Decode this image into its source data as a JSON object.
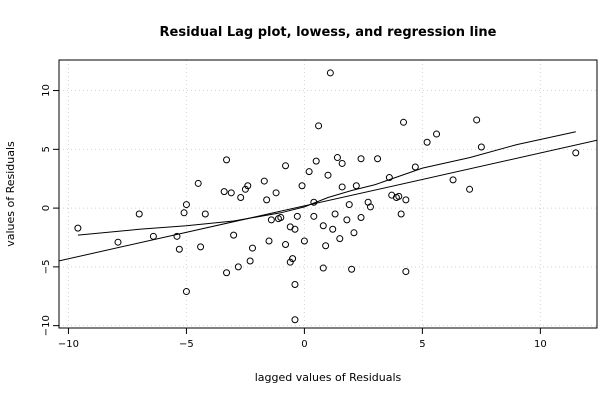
{
  "chart_data": {
    "type": "scatter",
    "title": "Residual Lag plot, lowess, and regression line",
    "xlabel": "lagged values of Residuals",
    "ylabel": "values of Residuals",
    "xlim": [
      -10.4,
      12.4
    ],
    "ylim": [
      -10.2,
      12.6
    ],
    "x_ticks": [
      -10,
      -5,
      0,
      5,
      10
    ],
    "y_ticks": [
      -10,
      -5,
      0,
      5,
      10
    ],
    "grid": true,
    "points": [
      [
        -9.6,
        -1.7
      ],
      [
        -7.9,
        -2.9
      ],
      [
        -7.0,
        -0.5
      ],
      [
        -6.4,
        -2.4
      ],
      [
        -5.4,
        -2.4
      ],
      [
        -5.3,
        -3.5
      ],
      [
        -5.1,
        -0.4
      ],
      [
        -5.0,
        0.3
      ],
      [
        -5.0,
        -7.1
      ],
      [
        -4.5,
        2.1
      ],
      [
        -4.4,
        -3.3
      ],
      [
        -4.2,
        -0.5
      ],
      [
        -3.4,
        1.4
      ],
      [
        -3.3,
        4.1
      ],
      [
        -3.1,
        1.3
      ],
      [
        -3.0,
        -2.3
      ],
      [
        -3.3,
        -5.5
      ],
      [
        -2.8,
        -5.0
      ],
      [
        -2.7,
        0.9
      ],
      [
        -2.5,
        1.6
      ],
      [
        -2.4,
        1.9
      ],
      [
        -2.3,
        -4.5
      ],
      [
        -2.2,
        -3.4
      ],
      [
        -1.7,
        2.3
      ],
      [
        -1.6,
        0.7
      ],
      [
        -1.5,
        -2.8
      ],
      [
        -1.4,
        -1.0
      ],
      [
        -1.2,
        1.3
      ],
      [
        -1.1,
        -0.9
      ],
      [
        -1.0,
        -0.8
      ],
      [
        -0.8,
        3.6
      ],
      [
        -0.8,
        -3.1
      ],
      [
        -0.6,
        -1.6
      ],
      [
        -0.5,
        -4.3
      ],
      [
        -0.6,
        -4.6
      ],
      [
        -0.4,
        -1.8
      ],
      [
        -0.4,
        -6.5
      ],
      [
        -0.3,
        -0.7
      ],
      [
        -0.4,
        -9.5
      ],
      [
        -0.1,
        1.9
      ],
      [
        0.0,
        -2.8
      ],
      [
        0.2,
        3.1
      ],
      [
        0.4,
        0.5
      ],
      [
        0.4,
        -0.7
      ],
      [
        0.5,
        4.0
      ],
      [
        0.6,
        7.0
      ],
      [
        0.8,
        -1.5
      ],
      [
        0.8,
        -5.1
      ],
      [
        0.9,
        -3.2
      ],
      [
        1.0,
        2.8
      ],
      [
        1.1,
        11.5
      ],
      [
        1.2,
        -1.8
      ],
      [
        1.3,
        -0.5
      ],
      [
        1.4,
        4.3
      ],
      [
        1.5,
        -2.6
      ],
      [
        1.6,
        3.8
      ],
      [
        1.6,
        1.8
      ],
      [
        1.8,
        -1.0
      ],
      [
        1.9,
        0.3
      ],
      [
        2.0,
        -5.2
      ],
      [
        2.1,
        -2.1
      ],
      [
        2.2,
        1.9
      ],
      [
        2.4,
        4.2
      ],
      [
        2.4,
        -0.8
      ],
      [
        2.7,
        0.5
      ],
      [
        2.8,
        0.1
      ],
      [
        3.1,
        4.2
      ],
      [
        3.6,
        2.6
      ],
      [
        3.7,
        1.1
      ],
      [
        3.9,
        0.9
      ],
      [
        4.0,
        1.0
      ],
      [
        4.1,
        -0.5
      ],
      [
        4.2,
        7.3
      ],
      [
        4.3,
        0.7
      ],
      [
        4.3,
        -5.4
      ],
      [
        4.7,
        3.5
      ],
      [
        5.2,
        5.6
      ],
      [
        5.6,
        6.3
      ],
      [
        6.3,
        2.4
      ],
      [
        7.0,
        1.6
      ],
      [
        7.3,
        7.5
      ],
      [
        7.5,
        5.2
      ],
      [
        11.5,
        4.7
      ]
    ],
    "lowess": [
      [
        -9.6,
        -2.3
      ],
      [
        -7.0,
        -1.8
      ],
      [
        -5.0,
        -1.5
      ],
      [
        -3.0,
        -1.1
      ],
      [
        -1.0,
        -0.4
      ],
      [
        0.0,
        0.1
      ],
      [
        1.0,
        0.9
      ],
      [
        2.0,
        1.5
      ],
      [
        3.0,
        2.0
      ],
      [
        4.0,
        2.7
      ],
      [
        5.0,
        3.4
      ],
      [
        7.0,
        4.3
      ],
      [
        9.0,
        5.4
      ],
      [
        11.5,
        6.5
      ]
    ],
    "regression": {
      "intercept": 0.19,
      "slope": 0.45
    }
  }
}
